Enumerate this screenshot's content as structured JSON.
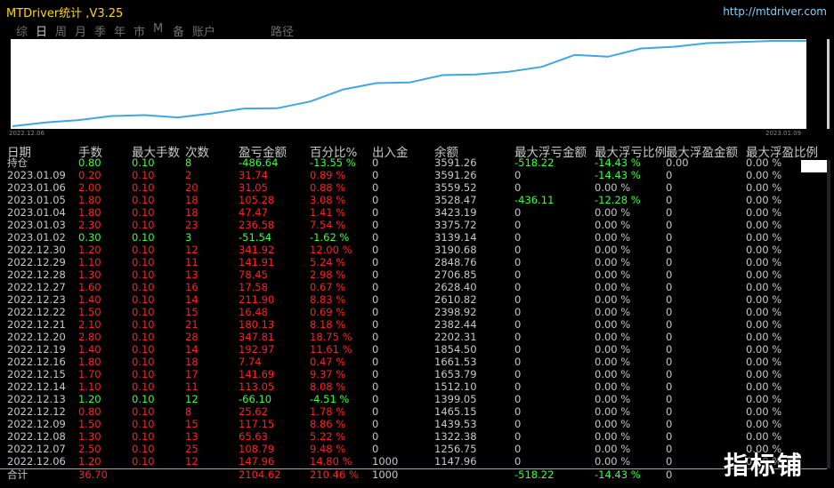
{
  "app": {
    "title": "MTDriver统计 ,V3.25",
    "url": "http://mtdriver.com"
  },
  "tabs": [
    "综",
    "日",
    "周",
    "月",
    "季",
    "年",
    "市",
    "M",
    "备",
    "账户",
    "路径"
  ],
  "active_tab": "日",
  "chart": {
    "start_date": "2022.12.06",
    "end_date": "2023.01.09",
    "line_color": "#3fa6e6",
    "values": [
      1147.96,
      1256.75,
      1322.38,
      1439.53,
      1465.15,
      1399.05,
      1512.1,
      1653.79,
      1661.53,
      1854.5,
      2202.31,
      2382.44,
      2398.92,
      2610.82,
      2628.4,
      2706.85,
      2848.76,
      3190.68,
      3139.14,
      3375.72,
      3423.19,
      3528.47,
      3559.52,
      3591.26,
      3591.26
    ]
  },
  "table": {
    "headers": [
      "日期",
      "手数",
      "最大手数",
      "次数",
      "盈亏金额",
      "百分比%",
      "出入金",
      "余额",
      "最大浮亏金额",
      "最大浮亏比例",
      "最大浮盈金额",
      "最大浮盈比例"
    ],
    "rows": [
      [
        "持仓",
        "0.80",
        "0.10",
        "8",
        "-486.64",
        "-13.55 %",
        "0",
        "3591.26",
        "-518.22",
        "-14.43 %",
        "0.00",
        "0.00 %"
      ],
      [
        "2023.01.09",
        "0.20",
        "0.10",
        "2",
        "31.74",
        "0.89 %",
        "0",
        "3591.26",
        "0",
        "-14.43 %",
        "0",
        "0.00 %"
      ],
      [
        "2023.01.06",
        "2.00",
        "0.10",
        "20",
        "31.05",
        "0.88 %",
        "0",
        "3559.52",
        "0",
        "0.00 %",
        "0",
        "0.00 %"
      ],
      [
        "2023.01.05",
        "1.80",
        "0.10",
        "18",
        "105.28",
        "3.08 %",
        "0",
        "3528.47",
        "-436.11",
        "-12.28 %",
        "0",
        "0.00 %"
      ],
      [
        "2023.01.04",
        "1.80",
        "0.10",
        "18",
        "47.47",
        "1.41 %",
        "0",
        "3423.19",
        "0",
        "0.00 %",
        "0",
        "0.00 %"
      ],
      [
        "2023.01.03",
        "2.30",
        "0.10",
        "23",
        "236.58",
        "7.54 %",
        "0",
        "3375.72",
        "0",
        "0.00 %",
        "0",
        "0.00 %"
      ],
      [
        "2023.01.02",
        "0.30",
        "0.10",
        "3",
        "-51.54",
        "-1.62 %",
        "0",
        "3139.14",
        "0",
        "0.00 %",
        "0",
        "0.00 %"
      ],
      [
        "2022.12.30",
        "1.20",
        "0.10",
        "12",
        "341.92",
        "12.00 %",
        "0",
        "3190.68",
        "0",
        "0.00 %",
        "0",
        "0.00 %"
      ],
      [
        "2022.12.29",
        "1.10",
        "0.10",
        "11",
        "141.91",
        "5.24 %",
        "0",
        "2848.76",
        "0",
        "0.00 %",
        "0",
        "0.00 %"
      ],
      [
        "2022.12.28",
        "1.30",
        "0.10",
        "13",
        "78.45",
        "2.98 %",
        "0",
        "2706.85",
        "0",
        "0.00 %",
        "0",
        "0.00 %"
      ],
      [
        "2022.12.27",
        "1.60",
        "0.10",
        "16",
        "17.58",
        "0.67 %",
        "0",
        "2628.40",
        "0",
        "0.00 %",
        "0",
        "0.00 %"
      ],
      [
        "2022.12.23",
        "1.40",
        "0.10",
        "14",
        "211.90",
        "8.83 %",
        "0",
        "2610.82",
        "0",
        "0.00 %",
        "0",
        "0.00 %"
      ],
      [
        "2022.12.22",
        "1.50",
        "0.10",
        "15",
        "16.48",
        "0.69 %",
        "0",
        "2398.92",
        "0",
        "0.00 %",
        "0",
        "0.00 %"
      ],
      [
        "2022.12.21",
        "2.10",
        "0.10",
        "21",
        "180.13",
        "8.18 %",
        "0",
        "2382.44",
        "0",
        "0.00 %",
        "0",
        "0.00 %"
      ],
      [
        "2022.12.20",
        "2.80",
        "0.10",
        "28",
        "347.81",
        "18.75 %",
        "0",
        "2202.31",
        "0",
        "0.00 %",
        "0",
        "0.00 %"
      ],
      [
        "2022.12.19",
        "1.40",
        "0.10",
        "14",
        "192.97",
        "11.61 %",
        "0",
        "1854.50",
        "0",
        "0.00 %",
        "0",
        "0.00 %"
      ],
      [
        "2022.12.16",
        "1.80",
        "0.10",
        "18",
        "7.74",
        "0.47 %",
        "0",
        "1661.53",
        "0",
        "0.00 %",
        "0",
        "0.00 %"
      ],
      [
        "2022.12.15",
        "1.70",
        "0.10",
        "17",
        "141.69",
        "9.37 %",
        "0",
        "1653.79",
        "0",
        "0.00 %",
        "0",
        "0.00 %"
      ],
      [
        "2022.12.14",
        "1.10",
        "0.10",
        "11",
        "113.05",
        "8.08 %",
        "0",
        "1512.10",
        "0",
        "0.00 %",
        "0",
        "0.00 %"
      ],
      [
        "2022.12.13",
        "1.20",
        "0.10",
        "12",
        "-66.10",
        "-4.51 %",
        "0",
        "1399.05",
        "0",
        "0.00 %",
        "0",
        "0.00 %"
      ],
      [
        "2022.12.12",
        "0.80",
        "0.10",
        "8",
        "25.62",
        "1.78 %",
        "0",
        "1465.15",
        "0",
        "0.00 %",
        "0",
        "0.00 %"
      ],
      [
        "2022.12.09",
        "1.50",
        "0.10",
        "15",
        "117.15",
        "8.86 %",
        "0",
        "1439.53",
        "0",
        "0.00 %",
        "0",
        "0.00 %"
      ],
      [
        "2022.12.08",
        "1.30",
        "0.10",
        "13",
        "65.63",
        "5.22 %",
        "0",
        "1322.38",
        "0",
        "0.00 %",
        "0",
        "0.00 %"
      ],
      [
        "2022.12.07",
        "2.50",
        "0.10",
        "25",
        "108.79",
        "9.48 %",
        "0",
        "1256.75",
        "0",
        "0.00 %",
        "0",
        "0.00 %"
      ],
      [
        "2022.12.06",
        "1.20",
        "0.10",
        "12",
        "147.96",
        "14.80 %",
        "1000",
        "1147.96",
        "0",
        "0.00 %",
        "0",
        "0.00 %"
      ]
    ],
    "total": [
      "合计",
      "36.70",
      "",
      "",
      "2104.62",
      "210.46 %",
      "1000",
      "",
      "-518.22",
      "-14.43 %",
      "0",
      ""
    ]
  },
  "watermark": "指标铺",
  "colors": {
    "profit": "#ff2020",
    "loss": "#39ff39",
    "neutral": "#c8c8c8",
    "title": "#ffd700",
    "url": "#87cefa"
  }
}
